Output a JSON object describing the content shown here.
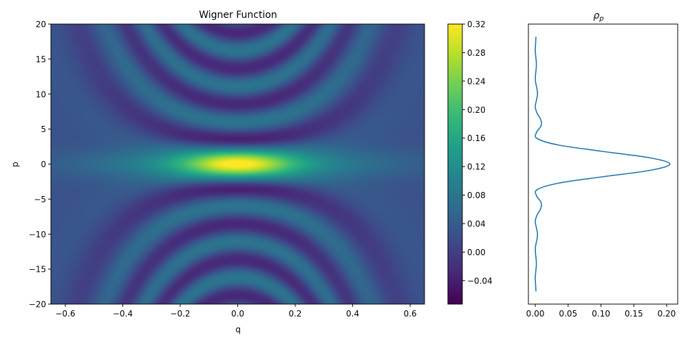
{
  "chart_data": [
    {
      "type": "heatmap",
      "title": "Wigner Function",
      "xlabel": "q",
      "ylabel": "p",
      "xlim": [
        -0.65,
        0.65
      ],
      "ylim": [
        -20,
        20
      ],
      "xticks": [
        "−0.6",
        "−0.4",
        "−0.2",
        "0.0",
        "0.2",
        "0.4",
        "0.6"
      ],
      "xtick_values": [
        -0.6,
        -0.4,
        -0.2,
        0,
        0.2,
        0.4,
        0.6
      ],
      "yticks": [
        "−20",
        "−15",
        "−10",
        "−5",
        "0",
        "5",
        "10",
        "15",
        "20"
      ],
      "ytick_values": [
        -20,
        -15,
        -10,
        -5,
        0,
        5,
        10,
        15,
        20
      ],
      "colormap": "viridis",
      "colorbar": {
        "range": [
          -0.073,
          0.32
        ],
        "ticks": [
          "−0.04",
          "0.00",
          "0.04",
          "0.08",
          "0.12",
          "0.16",
          "0.20",
          "0.24",
          "0.28",
          "0.32"
        ],
        "tick_values": [
          -0.04,
          0,
          0.04,
          0.08,
          0.12,
          0.16,
          0.2,
          0.24,
          0.28,
          0.32
        ]
      },
      "peak": {
        "q": 0,
        "p": 0,
        "value": 0.32
      },
      "negative_fringe_p_at_q0": [
        3.45,
        8.9,
        13.8,
        18.9
      ]
    },
    {
      "type": "line",
      "title": "ρp",
      "title_main": "ρ",
      "title_sub": "p",
      "orientation": "vertical",
      "xlim": [
        -0.0105,
        0.2168
      ],
      "ylim": [
        -22,
        22
      ],
      "xticks": [
        "0.00",
        "0.05",
        "0.10",
        "0.15",
        "0.20"
      ],
      "xtick_values": [
        0,
        0.05,
        0.1,
        0.15,
        0.2
      ],
      "color": "#1f77b4",
      "p": [
        -20,
        -19,
        -18,
        -17,
        -16,
        -15,
        -14,
        -13,
        -12,
        -11,
        -10,
        -9,
        -8,
        -7,
        -6,
        -5,
        -4,
        -3,
        -2,
        -1,
        0,
        1,
        2,
        3,
        4,
        5,
        6,
        7,
        8,
        9,
        10,
        11,
        12,
        13,
        14,
        15,
        16,
        17,
        18,
        19,
        20
      ],
      "rho": [
        0.001,
        0.0005,
        0,
        0.0006,
        0.0016,
        0.0014,
        0.0003,
        0.0003,
        0.0022,
        0.0034,
        0.0017,
        0,
        0.0027,
        0.0083,
        0.0088,
        0.002,
        0.0031,
        0.0351,
        0.102,
        0.1738,
        0.205,
        0.1738,
        0.102,
        0.0351,
        0.0031,
        0.002,
        0.0088,
        0.0083,
        0.0027,
        0,
        0.0017,
        0.0034,
        0.0022,
        0.0003,
        0.0003,
        0.0014,
        0.0016,
        0.0006,
        0,
        0.0005,
        0.001
      ]
    }
  ]
}
